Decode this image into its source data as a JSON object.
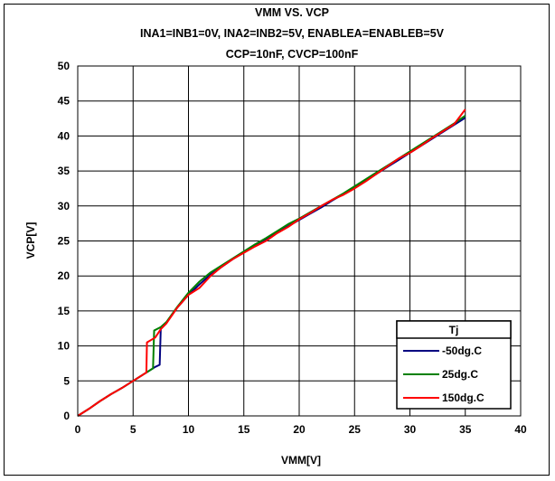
{
  "chart_data": {
    "type": "line",
    "title_lines": [
      "VMM VS. VCP",
      "INA1=INB1=0V, INA2=INB2=5V, ENABLEA=ENABLEB=5V",
      "CCP=10nF, CVCP=100nF"
    ],
    "xlabel": "VMM[V]",
    "ylabel": "VCP[V]",
    "xlim": [
      0,
      40
    ],
    "ylim": [
      0,
      50
    ],
    "xticks": [
      "0",
      "5",
      "10",
      "15",
      "20",
      "25",
      "30",
      "35",
      "40"
    ],
    "yticks": [
      "0",
      "5",
      "10",
      "15",
      "20",
      "25",
      "30",
      "35",
      "40",
      "45",
      "50"
    ],
    "grid": true,
    "legend_title": "Tj",
    "legend_position": "bottom-right",
    "series": [
      {
        "name": "-50dg.C",
        "color": "#000080",
        "x": [
          0,
          1,
          2,
          3,
          4,
          5,
          6,
          7.0,
          7.4,
          7.5,
          8,
          9,
          10,
          11,
          12,
          13,
          14,
          15,
          16,
          17,
          18,
          19,
          20,
          21,
          22,
          23,
          24,
          25,
          26,
          27,
          28,
          29,
          30,
          31,
          32,
          33,
          34,
          35
        ],
        "y": [
          0,
          1.0,
          2.1,
          3.1,
          4.0,
          5.0,
          6.0,
          7.0,
          7.3,
          12.6,
          13.3,
          15.5,
          17.3,
          18.8,
          20.2,
          21.3,
          22.4,
          23.4,
          24.3,
          25.2,
          26.2,
          27.1,
          28.0,
          28.9,
          29.8,
          30.8,
          31.7,
          32.6,
          33.6,
          34.6,
          35.6,
          36.6,
          37.6,
          38.6,
          39.6,
          40.6,
          41.6,
          42.6
        ]
      },
      {
        "name": "25dg.C",
        "color": "#008000",
        "x": [
          0,
          1,
          2,
          3,
          4,
          5,
          6,
          6.8,
          6.9,
          7.5,
          8,
          9,
          10,
          11,
          12,
          13,
          14,
          15,
          16,
          17,
          18,
          19,
          20,
          21,
          22,
          23,
          24,
          25,
          26,
          27,
          28,
          29,
          30,
          31,
          32,
          33,
          34,
          35
        ],
        "y": [
          0,
          1.0,
          2.1,
          3.1,
          4.0,
          5.0,
          6.0,
          6.8,
          12.2,
          12.7,
          13.4,
          15.6,
          17.6,
          19.2,
          20.5,
          21.5,
          22.5,
          23.5,
          24.5,
          25.4,
          26.4,
          27.4,
          28.2,
          29.1,
          30.0,
          30.9,
          31.8,
          32.8,
          33.8,
          34.8,
          35.8,
          36.8,
          37.8,
          38.8,
          39.8,
          40.8,
          41.8,
          42.9
        ]
      },
      {
        "name": "150dg.C",
        "color": "#ff0000",
        "x": [
          0,
          1,
          2,
          3,
          4,
          5,
          6,
          6.2,
          6.25,
          7,
          7.5,
          8,
          9,
          10,
          11,
          12,
          13,
          14,
          15,
          16,
          17,
          18,
          19,
          20,
          21,
          22,
          23,
          24,
          25,
          26,
          27,
          28,
          29,
          30,
          31,
          32,
          33,
          34,
          35
        ],
        "y": [
          0,
          1.0,
          2.1,
          3.1,
          4.0,
          5.0,
          6.0,
          6.2,
          10.5,
          11.2,
          12.4,
          13.2,
          15.5,
          17.3,
          18.3,
          20.0,
          21.3,
          22.4,
          23.3,
          24.2,
          25.0,
          26.1,
          27.0,
          28.1,
          29.0,
          30.0,
          30.9,
          31.6,
          32.5,
          33.5,
          34.6,
          35.7,
          36.8,
          37.6,
          38.6,
          39.7,
          40.7,
          41.7,
          43.8
        ]
      }
    ]
  }
}
